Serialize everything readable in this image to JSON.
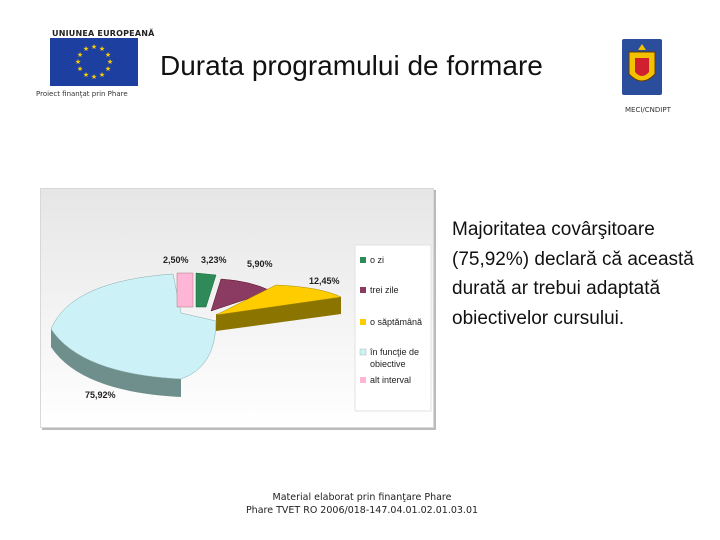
{
  "header": {
    "eu_label": "UNIUNEA EUROPEANĂ",
    "eu_caption": "Proiect finanţat prin Phare",
    "title": "Durata programului de formare",
    "mec_caption": "MECI/CNDIPT"
  },
  "body_text": "Majoritatea covârşitoare (75,92%) declară că această durată ar trebui adaptată obiectivelor cursului.",
  "footer": {
    "line1": "Material elaborat prin finanţare Phare",
    "line2": "Phare TVET RO 2006/018-147.04.01.02.01.03.01"
  },
  "colors": {
    "eu_blue": "#1c3fa0",
    "eu_star": "#ffcc00",
    "slice_colors": [
      "#2e8b57",
      "#8b3a62",
      "#ffcc00",
      "#8b7500",
      "#ccf2f7",
      "#ffb6d6"
    ]
  },
  "chart_data": {
    "type": "pie",
    "style": "3d-exploded",
    "legend_position": "right",
    "categories": [
      "o zi",
      "trei zile",
      "o săptămână",
      "în funcţie de obiective",
      "alt interval"
    ],
    "labels": [
      "3,23%",
      "5,90%",
      "12,45%",
      "75,92%",
      "2,50%"
    ],
    "values": [
      3.23,
      5.9,
      12.45,
      75.92,
      2.5
    ]
  }
}
